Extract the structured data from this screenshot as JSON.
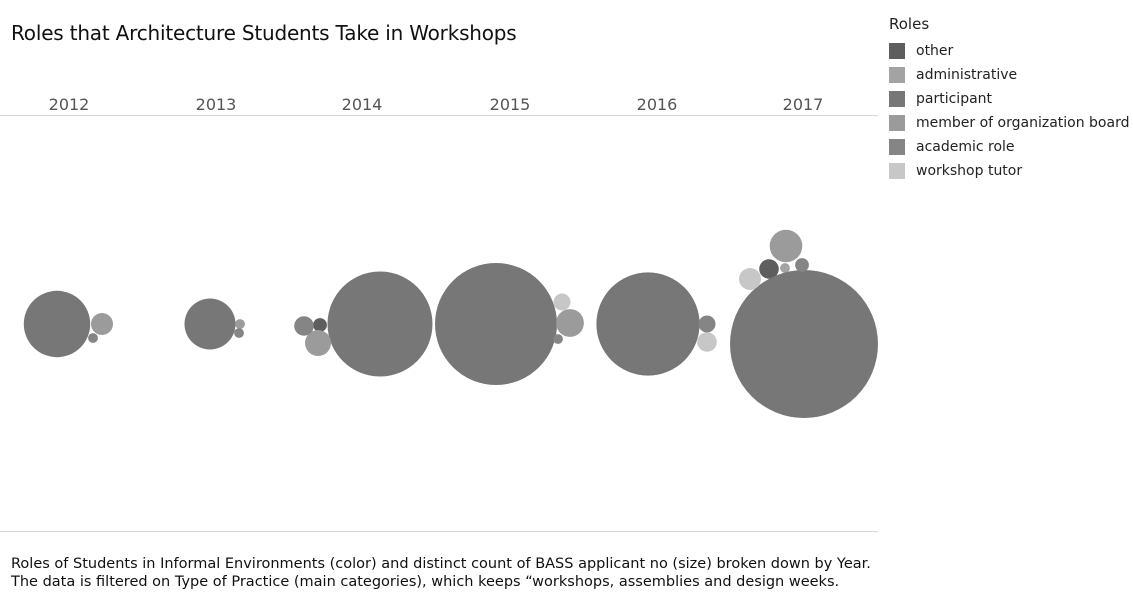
{
  "chart_data": {
    "type": "bubble",
    "title": "Roles that Architecture Students Take in Workshops",
    "legend_title": "Roles",
    "legend_position": "right",
    "roles": [
      {
        "name": "other",
        "color": "#5e5e5e"
      },
      {
        "name": "administrative",
        "color": "#a3a3a3"
      },
      {
        "name": "participant",
        "color": "#777777"
      },
      {
        "name": "member of organization board",
        "color": "#9b9b9b"
      },
      {
        "name": "academic role",
        "color": "#858585"
      },
      {
        "name": "workshop tutor",
        "color": "#c7c7c7"
      }
    ],
    "years": [
      "2012",
      "2013",
      "2014",
      "2015",
      "2016",
      "2017"
    ],
    "data": [
      {
        "year": "2012",
        "values": {
          "participant": 46,
          "member of organization board": 5,
          "academic role": 1
        }
      },
      {
        "year": "2013",
        "values": {
          "participant": 27,
          "member of organization board": 1,
          "academic role": 1
        }
      },
      {
        "year": "2014",
        "values": {
          "other": 2,
          "participant": 115,
          "member of organization board": 7,
          "academic role": 4
        }
      },
      {
        "year": "2015",
        "values": {
          "participant": 155,
          "member of organization board": 8,
          "academic role": 1,
          "workshop tutor": 3
        }
      },
      {
        "year": "2016",
        "values": {
          "participant": 111,
          "academic role": 3,
          "workshop tutor": 4
        }
      },
      {
        "year": "2017",
        "values": {
          "other": 4,
          "administrative": 1,
          "participant": 228,
          "member of organization board": 11,
          "academic role": 2,
          "workshop tutor": 5
        }
      }
    ],
    "caption": [
      "Roles of Students in Informal Environments (color) and distinct count of BASS applicant no (size) broken down by Year.",
      "The data is filtered on Type of Practice (main categories), which keeps “workshops, assemblies and design weeks."
    ]
  }
}
